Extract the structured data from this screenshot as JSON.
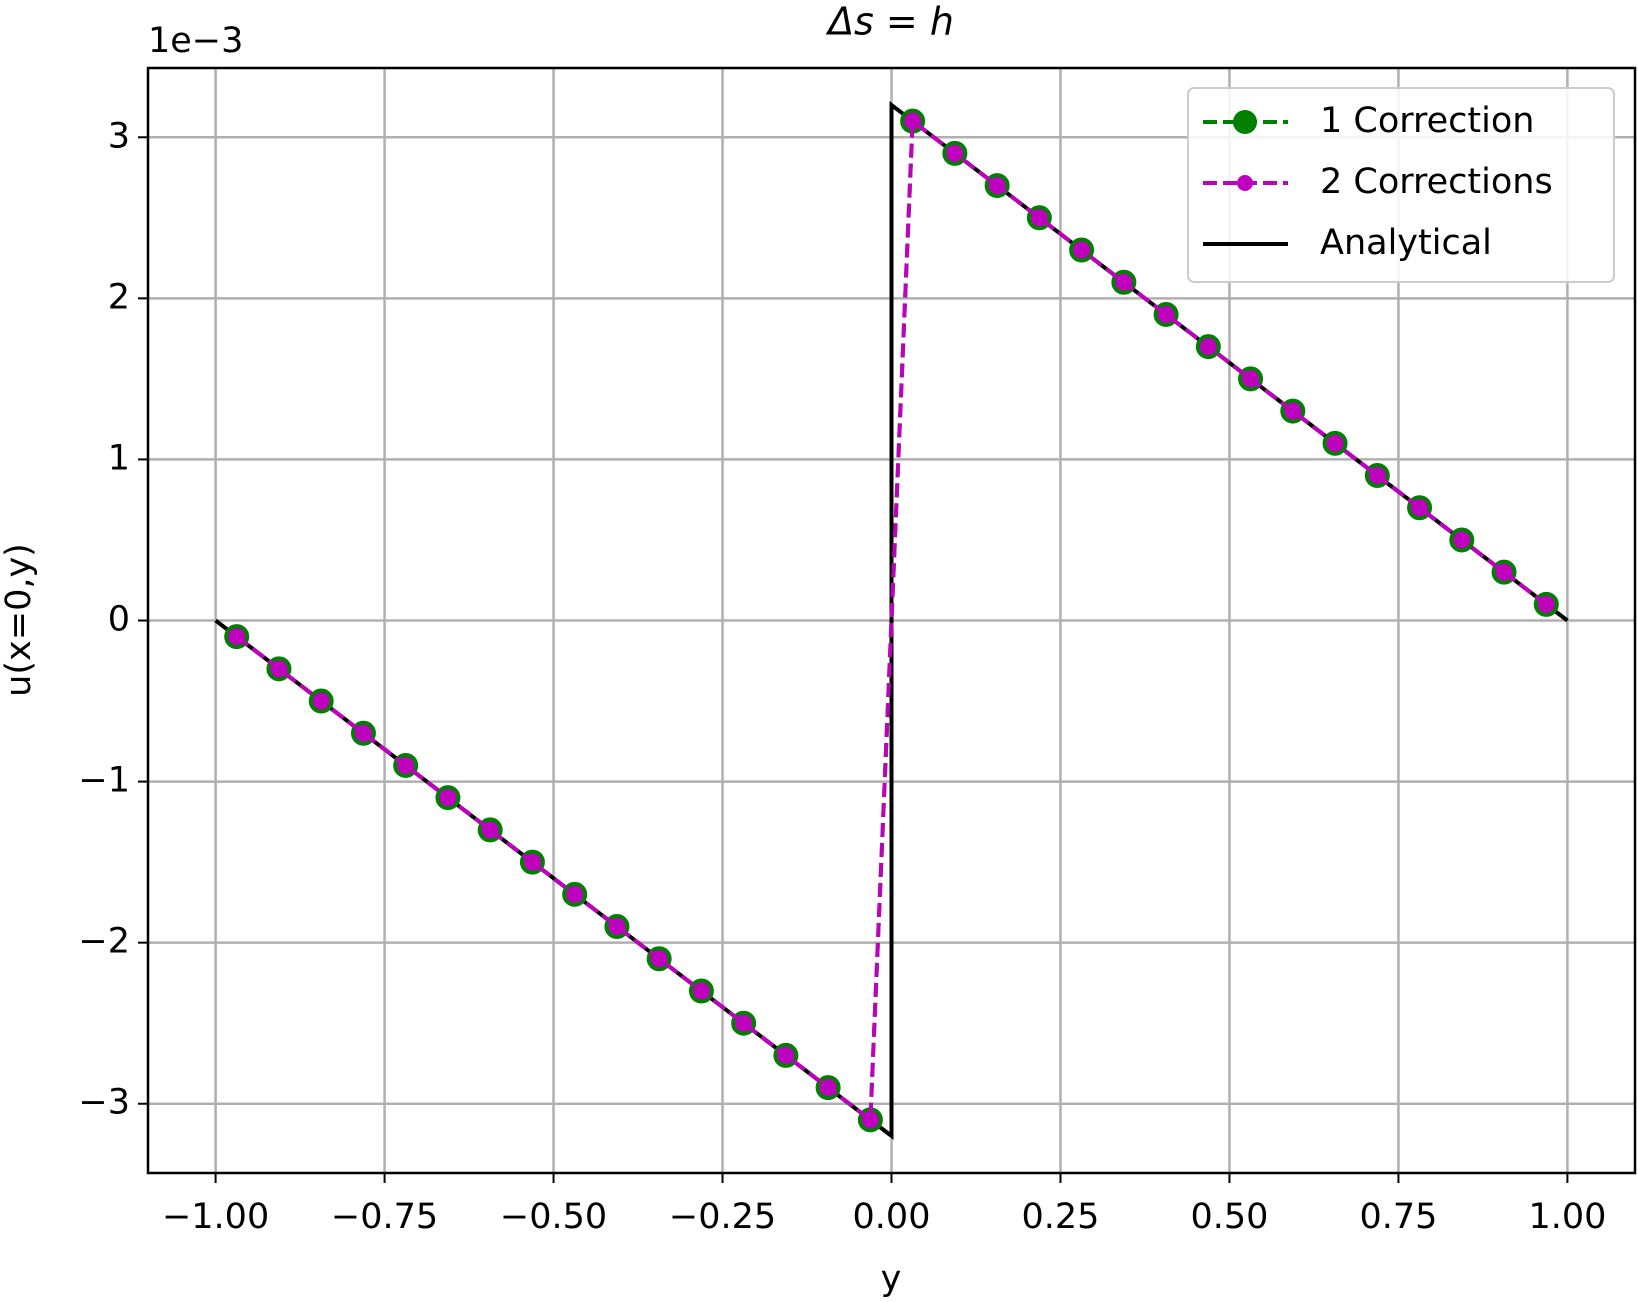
{
  "chart_data": {
    "type": "line",
    "title": "Δs = h",
    "offset_text": "1e−3",
    "x_label": "y",
    "y_label": "u(x=0,y)",
    "x": [
      -0.96875,
      -0.90625,
      -0.84375,
      -0.78125,
      -0.71875,
      -0.65625,
      -0.59375,
      -0.53125,
      -0.46875,
      -0.40625,
      -0.34375,
      -0.28125,
      -0.21875,
      -0.15625,
      -0.09375,
      -0.03125,
      0.03125,
      0.09375,
      0.15625,
      0.21875,
      0.28125,
      0.34375,
      0.40625,
      0.46875,
      0.53125,
      0.59375,
      0.65625,
      0.71875,
      0.78125,
      0.84375,
      0.90625,
      0.96875
    ],
    "series": [
      {
        "name": "Analytical",
        "color": "#000000",
        "dash": false,
        "marker": 0,
        "x": [
          -1,
          0,
          0,
          1
        ],
        "values": [
          0,
          -3.2,
          3.2,
          0
        ]
      },
      {
        "name": "1 Correction",
        "color": "#008000",
        "dash": true,
        "marker": 12,
        "values": [
          -0.1,
          -0.3,
          -0.5,
          -0.7,
          -0.9,
          -1.1,
          -1.3,
          -1.5,
          -1.7,
          -1.9,
          -2.1,
          -2.3,
          -2.5,
          -2.7,
          -2.9,
          -3.1,
          3.1,
          2.9,
          2.7,
          2.5,
          2.3,
          2.1,
          1.9,
          1.7,
          1.5,
          1.3,
          1.1,
          0.9,
          0.7,
          0.5,
          0.3,
          0.1
        ]
      },
      {
        "name": "2 Corrections",
        "color": "#bf00bf",
        "dash": true,
        "marker": 8,
        "values": [
          -0.1,
          -0.3,
          -0.5,
          -0.7,
          -0.9,
          -1.1,
          -1.3,
          -1.5,
          -1.7,
          -1.9,
          -2.1,
          -2.3,
          -2.5,
          -2.7,
          -2.9,
          -3.1,
          3.1,
          2.9,
          2.7,
          2.5,
          2.3,
          2.1,
          1.9,
          1.7,
          1.5,
          1.3,
          1.1,
          0.9,
          0.7,
          0.5,
          0.3,
          0.1
        ]
      }
    ],
    "legend_order": [
      1,
      2,
      0
    ],
    "xlim": [
      -1.1,
      1.1
    ],
    "ylim": [
      -3.43,
      3.43
    ],
    "xticks": [
      {
        "value": -1,
        "label": "−1.00"
      },
      {
        "value": -0.75,
        "label": "−0.75"
      },
      {
        "value": -0.5,
        "label": "−0.50"
      },
      {
        "value": -0.25,
        "label": "−0.25"
      },
      {
        "value": 0,
        "label": "0.00"
      },
      {
        "value": 0.25,
        "label": "0.25"
      },
      {
        "value": 0.5,
        "label": "0.50"
      },
      {
        "value": 0.75,
        "label": "0.75"
      },
      {
        "value": 1,
        "label": "1.00"
      }
    ],
    "yticks": [
      {
        "value": -3,
        "label": "−3"
      },
      {
        "value": -2,
        "label": "−2"
      },
      {
        "value": -1,
        "label": "−1"
      },
      0,
      1,
      2,
      3
    ],
    "grid": true,
    "legend": "upper right"
  }
}
